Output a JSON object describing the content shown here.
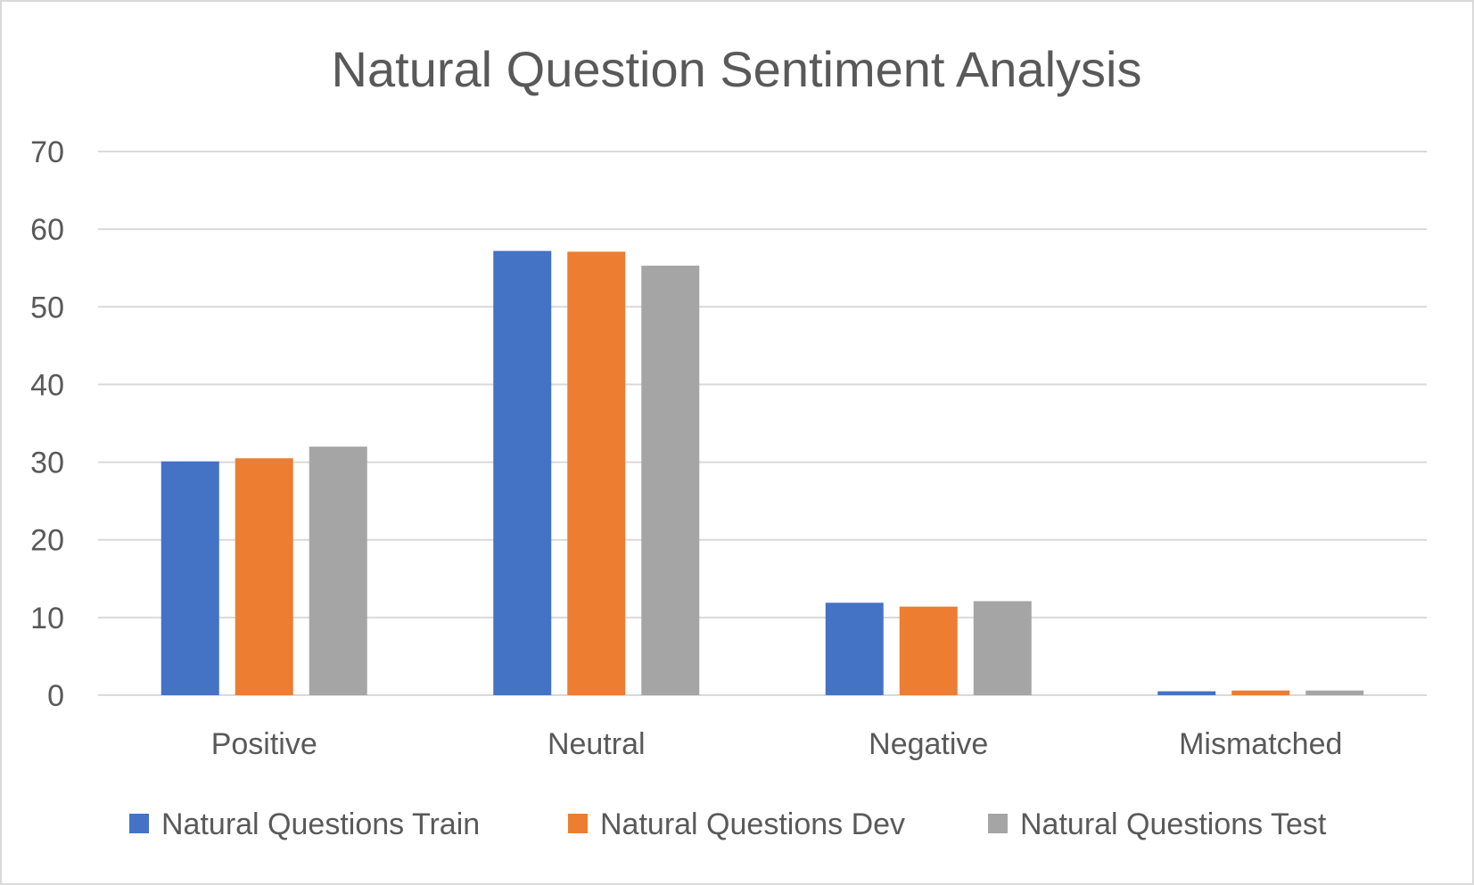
{
  "chart_data": {
    "type": "bar",
    "title": "Natural Question Sentiment Analysis",
    "categories": [
      "Positive",
      "Neutral",
      "Negative",
      "Mismatched"
    ],
    "series": [
      {
        "name": "Natural Questions Train",
        "color": "#4472C4",
        "values": [
          30.1,
          57.2,
          11.9,
          0.5
        ]
      },
      {
        "name": "Natural Questions Dev",
        "color": "#ED7D31",
        "values": [
          30.5,
          57.1,
          11.4,
          0.6
        ]
      },
      {
        "name": "Natural Questions Test",
        "color": "#A5A5A5",
        "values": [
          32.0,
          55.3,
          12.1,
          0.6
        ]
      }
    ],
    "ylim": [
      0,
      70
    ],
    "yticks": [
      0,
      10,
      20,
      30,
      40,
      50,
      60,
      70
    ],
    "xlabel": "",
    "ylabel": "",
    "grid": true,
    "legend_position": "bottom"
  }
}
